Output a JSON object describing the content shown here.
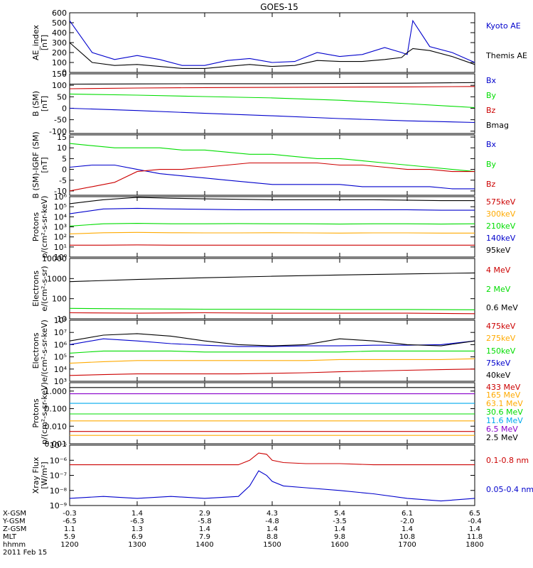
{
  "title": "GOES-15",
  "colors": {
    "black": "#000000",
    "red": "#cc0000",
    "green": "#00dd00",
    "blue": "#0000cc",
    "orange": "#ffaa00",
    "cyan": "#00aaee",
    "purple": "#8800cc"
  },
  "chart_data": [
    {
      "type": "line",
      "ylabel": [
        "AE_index",
        "[nT]"
      ],
      "ylim": [
        0,
        600
      ],
      "log": false,
      "yticks": [
        0,
        100,
        200,
        300,
        400,
        500,
        600
      ],
      "ytick_labels": [
        "0",
        "100",
        "200",
        "300",
        "400",
        "500",
        "600"
      ],
      "x": [
        1200,
        1220,
        1240,
        1300,
        1320,
        1340,
        1400,
        1420,
        1440,
        1500,
        1520,
        1540,
        1600,
        1620,
        1640,
        1655,
        1700,
        1705,
        1720,
        1740,
        1800
      ],
      "series": [
        {
          "name": "Kyoto AE",
          "color": "blue",
          "values": [
            520,
            200,
            130,
            170,
            130,
            70,
            70,
            120,
            140,
            100,
            110,
            200,
            160,
            180,
            250,
            200,
            180,
            520,
            260,
            200,
            100
          ]
        },
        {
          "name": "Themis AE",
          "color": "black",
          "values": [
            300,
            100,
            70,
            80,
            60,
            40,
            40,
            60,
            80,
            60,
            70,
            120,
            110,
            110,
            130,
            150,
            200,
            240,
            220,
            160,
            80
          ]
        }
      ]
    },
    {
      "type": "line",
      "ylabel": [
        "B (SM)",
        "[nT]"
      ],
      "ylim": [
        -110,
        150
      ],
      "log": false,
      "yticks": [
        -100,
        -50,
        0,
        50,
        100,
        150
      ],
      "ytick_labels": [
        "-100",
        "-50",
        "0",
        "50",
        "100",
        "150"
      ],
      "x": [
        1200,
        1300,
        1400,
        1500,
        1600,
        1700,
        1800
      ],
      "series": [
        {
          "name": "Bx",
          "color": "blue",
          "values": [
            0,
            -10,
            -22,
            -33,
            -45,
            -55,
            -62
          ]
        },
        {
          "name": "By",
          "color": "green",
          "values": [
            62,
            57,
            51,
            45,
            35,
            20,
            3
          ]
        },
        {
          "name": "Bz",
          "color": "red",
          "values": [
            85,
            88,
            90,
            91,
            92,
            93,
            95
          ]
        },
        {
          "name": "Bmag",
          "color": "black",
          "values": [
            105,
            106,
            107,
            107,
            108,
            109,
            112
          ]
        }
      ]
    },
    {
      "type": "line",
      "ylabel": [
        "B (SM)-IGRF (SM)",
        "[nT]"
      ],
      "ylim": [
        -12,
        16
      ],
      "log": false,
      "yticks": [
        -10,
        -5,
        0,
        5,
        10,
        15
      ],
      "ytick_labels": [
        "-10",
        "-5",
        "0",
        "5",
        "10",
        "15"
      ],
      "x": [
        1200,
        1220,
        1240,
        1300,
        1320,
        1340,
        1400,
        1420,
        1440,
        1500,
        1520,
        1540,
        1600,
        1620,
        1640,
        1700,
        1720,
        1740,
        1800
      ],
      "series": [
        {
          "name": "Bx",
          "color": "blue",
          "values": [
            1,
            2,
            2,
            0,
            -2,
            -3,
            -4,
            -5,
            -6,
            -7,
            -7,
            -7,
            -7,
            -8,
            -8,
            -8,
            -8,
            -9,
            -9
          ]
        },
        {
          "name": "By",
          "color": "green",
          "values": [
            12,
            11,
            10,
            10,
            10,
            9,
            9,
            8,
            7,
            7,
            6,
            5,
            5,
            4,
            3,
            2,
            1,
            0,
            -1
          ]
        },
        {
          "name": "Bz",
          "color": "red",
          "values": [
            -10,
            -8,
            -6,
            -1,
            0,
            0,
            1,
            2,
            3,
            3,
            3,
            3,
            2,
            2,
            1,
            0,
            0,
            -1,
            -1
          ]
        }
      ]
    },
    {
      "type": "line",
      "ylabel": [
        "Protons",
        "p/(cm²-s-sr-keV)"
      ],
      "ylim": [
        1,
        1000000
      ],
      "log": true,
      "yticks": [
        1,
        10,
        100,
        1000,
        10000,
        100000,
        1000000
      ],
      "ytick_labels": [
        "10⁰",
        "10¹",
        "10²",
        "10³",
        "10⁴",
        "10⁵",
        "10⁶"
      ],
      "x": [
        1200,
        1230,
        1300,
        1330,
        1400,
        1430,
        1500,
        1530,
        1600,
        1630,
        1700,
        1730,
        1800
      ],
      "series": [
        {
          "name": "575keV",
          "color": "red",
          "values": [
            15,
            15,
            16,
            15,
            15,
            15,
            15,
            15,
            15,
            15,
            15,
            15,
            15
          ]
        },
        {
          "name": "300keV",
          "color": "orange",
          "values": [
            200,
            260,
            280,
            260,
            250,
            250,
            260,
            250,
            240,
            250,
            250,
            240,
            240
          ]
        },
        {
          "name": "210keV",
          "color": "green",
          "values": [
            1200,
            2000,
            2200,
            2000,
            2000,
            2100,
            2000,
            2000,
            1900,
            2000,
            2000,
            1900,
            2000
          ]
        },
        {
          "name": "140keV",
          "color": "blue",
          "values": [
            20000,
            60000,
            70000,
            60000,
            55000,
            50000,
            50000,
            50000,
            50000,
            50000,
            50000,
            45000,
            45000
          ]
        },
        {
          "name": "95keV",
          "color": "black",
          "values": [
            200000,
            500000,
            1000000,
            700000,
            600000,
            550000,
            500000,
            500000,
            500000,
            500000,
            450000,
            400000,
            400000
          ]
        }
      ]
    },
    {
      "type": "line",
      "ylabel": [
        "Electrons",
        "e/(cm²-s-sr)"
      ],
      "ylim": [
        10,
        10000
      ],
      "log": true,
      "yticks": [
        10,
        100,
        1000,
        10000
      ],
      "ytick_labels": [
        "10",
        "100",
        "1000",
        "10000"
      ],
      "x": [
        1200,
        1300,
        1400,
        1500,
        1600,
        1700,
        1800
      ],
      "series": [
        {
          "name": "4 MeV",
          "color": "red",
          "values": [
            20,
            19,
            20,
            19,
            19,
            19,
            18
          ]
        },
        {
          "name": "2 MeV",
          "color": "green",
          "values": [
            33,
            31,
            30,
            30,
            29,
            29,
            28
          ]
        },
        {
          "name": "0.6 MeV",
          "color": "black",
          "values": [
            700,
            900,
            1100,
            1300,
            1500,
            1700,
            1900
          ]
        }
      ]
    },
    {
      "type": "line",
      "ylabel": [
        "Electrons",
        "e/(cm²-s-sr-keV)"
      ],
      "ylim": [
        1000,
        100000000
      ],
      "log": true,
      "yticks": [
        1000,
        10000,
        100000,
        1000000,
        10000000,
        100000000
      ],
      "ytick_labels": [
        "10³",
        "10⁴",
        "10⁵",
        "10⁶",
        "10⁷",
        "10⁸"
      ],
      "x": [
        1200,
        1230,
        1300,
        1330,
        1400,
        1430,
        1500,
        1530,
        1600,
        1630,
        1700,
        1730,
        1800
      ],
      "series": [
        {
          "name": "475keV",
          "color": "red",
          "values": [
            3000,
            3500,
            4000,
            4000,
            4000,
            4000,
            4500,
            5000,
            6000,
            7000,
            8000,
            9000,
            10000
          ]
        },
        {
          "name": "275keV",
          "color": "orange",
          "values": [
            30000,
            40000,
            50000,
            50000,
            50000,
            50000,
            50000,
            50000,
            60000,
            60000,
            60000,
            60000,
            70000
          ]
        },
        {
          "name": "150keV",
          "color": "green",
          "values": [
            200000,
            300000,
            300000,
            300000,
            250000,
            250000,
            250000,
            250000,
            250000,
            300000,
            300000,
            300000,
            300000
          ]
        },
        {
          "name": "75keV",
          "color": "blue",
          "values": [
            1000000,
            3000000,
            2000000,
            1200000,
            900000,
            700000,
            700000,
            800000,
            800000,
            900000,
            900000,
            1000000,
            2000000
          ]
        },
        {
          "name": "40keV",
          "color": "black",
          "values": [
            2000000,
            6000000,
            8000000,
            5000000,
            2000000,
            1000000,
            800000,
            1000000,
            3000000,
            2000000,
            1000000,
            800000,
            2000000
          ]
        }
      ]
    },
    {
      "type": "line",
      "ylabel": [
        "Protons",
        "p/(cm²-s-sr-keV)"
      ],
      "ylim": [
        0.001,
        3
      ],
      "log": true,
      "yticks": [
        0.001,
        0.01,
        0.1,
        1
      ],
      "ytick_labels": [
        "0.001",
        "0.010",
        "0.100",
        "1.000"
      ],
      "x": [
        1200,
        1300,
        1400,
        1500,
        1600,
        1700,
        1800
      ],
      "series": [
        {
          "name": "433 MeV",
          "color": "red",
          "values": [
            0.005,
            0.005,
            0.005,
            0.005,
            0.005,
            0.005,
            0.005
          ]
        },
        {
          "name": "165 MeV",
          "color": "orange",
          "values": [
            0.003,
            0.003,
            0.003,
            0.003,
            0.003,
            0.003,
            0.003
          ]
        },
        {
          "name": "63.1 MeV",
          "color": "orange",
          "values": [
            0.02,
            0.02,
            0.02,
            0.02,
            0.02,
            0.02,
            0.02
          ]
        },
        {
          "name": "30.6 MeV",
          "color": "green",
          "values": [
            0.05,
            0.05,
            0.05,
            0.05,
            0.05,
            0.05,
            0.05
          ]
        },
        {
          "name": "11.6 MeV",
          "color": "cyan",
          "values": [
            0.2,
            0.2,
            0.2,
            0.2,
            0.2,
            0.2,
            0.2
          ]
        },
        {
          "name": "6.5 MeV",
          "color": "purple",
          "values": [
            0.7,
            0.7,
            0.7,
            0.7,
            0.7,
            0.7,
            0.7
          ]
        },
        {
          "name": "2.5 MeV",
          "color": "black",
          "values": [
            1.6,
            1.6,
            1.6,
            1.6,
            1.6,
            1.6,
            1.6
          ]
        }
      ]
    },
    {
      "type": "line",
      "ylabel": [
        "Xray Flux",
        "[W/m²]"
      ],
      "ylim": [
        1e-09,
        1e-05
      ],
      "log": true,
      "yticks": [
        1e-09,
        1e-08,
        1e-07,
        1e-06,
        1e-05
      ],
      "ytick_labels": [
        "10⁻⁹",
        "10⁻⁸",
        "10⁻⁷",
        "10⁻⁶",
        "10⁻⁵"
      ],
      "x": [
        1200,
        1230,
        1300,
        1330,
        1400,
        1430,
        1440,
        1448,
        1455,
        1500,
        1510,
        1530,
        1600,
        1630,
        1700,
        1730,
        1800
      ],
      "series": [
        {
          "name": "0.1-0.8 nm",
          "color": "red",
          "values": [
            5e-07,
            5e-07,
            5e-07,
            5e-07,
            5e-07,
            5e-07,
            1e-06,
            3e-06,
            2.5e-06,
            1e-06,
            7e-07,
            6e-07,
            6e-07,
            5e-07,
            5e-07,
            5e-07,
            5e-07
          ]
        },
        {
          "name": "0.05-0.4 nm",
          "color": "blue",
          "values": [
            3e-09,
            4e-09,
            3e-09,
            4e-09,
            3e-09,
            4e-09,
            2e-08,
            2e-07,
            1e-07,
            4e-08,
            2e-08,
            1.5e-08,
            1e-08,
            6e-09,
            3e-09,
            2e-09,
            3e-09
          ]
        }
      ]
    }
  ],
  "xaxis": {
    "ticks": [
      1200,
      1300,
      1400,
      1500,
      1600,
      1700,
      1800
    ],
    "rows": [
      {
        "label": "X-GSM",
        "values": [
          "-0.3",
          "1.4",
          "2.9",
          "4.3",
          "5.4",
          "6.1",
          "6.5"
        ]
      },
      {
        "label": "Y-GSM",
        "values": [
          "-6.5",
          "-6.3",
          "-5.8",
          "-4.8",
          "-3.5",
          "-2.0",
          "-0.4"
        ]
      },
      {
        "label": "Z-GSM",
        "values": [
          "1.1",
          "1.3",
          "1.4",
          "1.4",
          "1.4",
          "1.4",
          "1.4"
        ]
      },
      {
        "label": "MLT",
        "values": [
          "5.9",
          "6.9",
          "7.9",
          "8.8",
          "9.8",
          "10.8",
          "11.8"
        ]
      },
      {
        "label": "hhmm",
        "values": [
          "1200",
          "1300",
          "1400",
          "1500",
          "1600",
          "1700",
          "1800"
        ]
      }
    ],
    "date": "2011 Feb 15"
  }
}
